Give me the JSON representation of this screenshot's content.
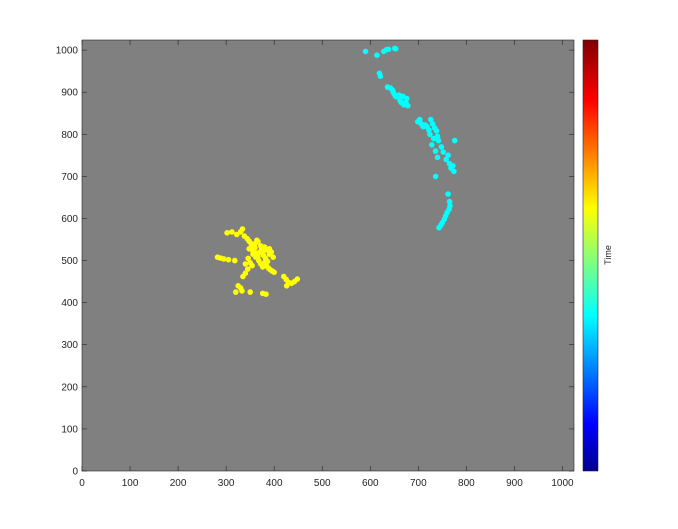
{
  "chart_data": {
    "type": "scatter",
    "title": "",
    "xlabel": "",
    "ylabel": "",
    "xlim": [
      0,
      1024
    ],
    "ylim": [
      0,
      1024
    ],
    "xticks": [
      0,
      100,
      200,
      300,
      400,
      500,
      600,
      700,
      800,
      900,
      1000
    ],
    "yticks": [
      0,
      100,
      200,
      300,
      400,
      500,
      600,
      700,
      800,
      900,
      1000
    ],
    "background_color": "#808080",
    "grid": false,
    "colorbar": {
      "label": "Time",
      "colormap": "jet",
      "position": "right"
    },
    "series": [
      {
        "color": "#ffff00",
        "points": [
          [
            302,
            566
          ],
          [
            312,
            568
          ],
          [
            322,
            562
          ],
          [
            330,
            568
          ],
          [
            334,
            575
          ],
          [
            338,
            558
          ],
          [
            344,
            552
          ],
          [
            348,
            546
          ],
          [
            352,
            540
          ],
          [
            356,
            535
          ],
          [
            360,
            530
          ],
          [
            364,
            548
          ],
          [
            358,
            522
          ],
          [
            362,
            515
          ],
          [
            366,
            510
          ],
          [
            370,
            520
          ],
          [
            374,
            528
          ],
          [
            378,
            512
          ],
          [
            382,
            505
          ],
          [
            386,
            498
          ],
          [
            390,
            515
          ],
          [
            394,
            520
          ],
          [
            398,
            508
          ],
          [
            368,
            500
          ],
          [
            372,
            492
          ],
          [
            376,
            485
          ],
          [
            380,
            495
          ],
          [
            384,
            488
          ],
          [
            388,
            482
          ],
          [
            392,
            478
          ],
          [
            396,
            475
          ],
          [
            400,
            472
          ],
          [
            346,
            505
          ],
          [
            350,
            495
          ],
          [
            354,
            488
          ],
          [
            345,
            480
          ],
          [
            340,
            470
          ],
          [
            335,
            462
          ],
          [
            340,
            492
          ],
          [
            348,
            528
          ],
          [
            355,
            524
          ],
          [
            360,
            540
          ],
          [
            366,
            545
          ],
          [
            372,
            535
          ],
          [
            380,
            532
          ],
          [
            384,
            525
          ],
          [
            390,
            528
          ],
          [
            376,
            522
          ],
          [
            368,
            518
          ],
          [
            362,
            508
          ],
          [
            356,
            515
          ],
          [
            282,
            508
          ],
          [
            288,
            506
          ],
          [
            295,
            504
          ],
          [
            305,
            502
          ],
          [
            318,
            500
          ],
          [
            325,
            440
          ],
          [
            330,
            435
          ],
          [
            333,
            428
          ],
          [
            320,
            425
          ],
          [
            350,
            425
          ],
          [
            376,
            422
          ],
          [
            383,
            420
          ],
          [
            420,
            462
          ],
          [
            425,
            455
          ],
          [
            430,
            448
          ],
          [
            426,
            440
          ],
          [
            436,
            446
          ],
          [
            442,
            450
          ],
          [
            448,
            456
          ]
        ]
      },
      {
        "color": "#00ffff",
        "points": [
          [
            590,
            997
          ],
          [
            614,
            988
          ],
          [
            628,
            997
          ],
          [
            634,
            1001
          ],
          [
            638,
            1002
          ],
          [
            651,
            1004
          ],
          [
            653,
            1003
          ],
          [
            619,
            945
          ],
          [
            621,
            938
          ],
          [
            636,
            912
          ],
          [
            642,
            910
          ],
          [
            646,
            905
          ],
          [
            648,
            900
          ],
          [
            650,
            895
          ],
          [
            653,
            890
          ],
          [
            658,
            888
          ],
          [
            662,
            880
          ],
          [
            665,
            875
          ],
          [
            670,
            870
          ],
          [
            674,
            876
          ],
          [
            676,
            885
          ],
          [
            678,
            868
          ],
          [
            660,
            893
          ],
          [
            668,
            890
          ],
          [
            699,
            830
          ],
          [
            703,
            835
          ],
          [
            706,
            825
          ],
          [
            710,
            818
          ],
          [
            714,
            822
          ],
          [
            718,
            818
          ],
          [
            722,
            810
          ],
          [
            724,
            800
          ],
          [
            726,
            835
          ],
          [
            730,
            825
          ],
          [
            734,
            815
          ],
          [
            738,
            808
          ],
          [
            740,
            795
          ],
          [
            742,
            785
          ],
          [
            732,
            790
          ],
          [
            728,
            775
          ],
          [
            736,
            760
          ],
          [
            740,
            745
          ],
          [
            748,
            770
          ],
          [
            752,
            758
          ],
          [
            758,
            740
          ],
          [
            762,
            750
          ],
          [
            765,
            730
          ],
          [
            768,
            720
          ],
          [
            772,
            725
          ],
          [
            776,
            785
          ],
          [
            774,
            712
          ],
          [
            736,
            700
          ],
          [
            762,
            658
          ],
          [
            765,
            640
          ],
          [
            766,
            630
          ],
          [
            764,
            622
          ],
          [
            760,
            614
          ],
          [
            757,
            606
          ],
          [
            754,
            598
          ],
          [
            750,
            590
          ],
          [
            747,
            584
          ],
          [
            743,
            578
          ]
        ]
      }
    ]
  }
}
